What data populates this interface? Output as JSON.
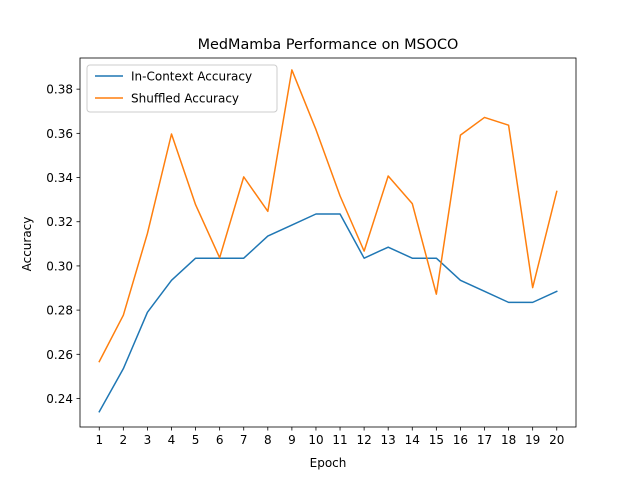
{
  "chart_data": {
    "type": "line",
    "title": "MedMamba Performance on MSOCO",
    "xlabel": "Epoch",
    "ylabel": "Accuracy",
    "x": [
      1,
      2,
      3,
      4,
      5,
      6,
      7,
      8,
      9,
      10,
      11,
      12,
      13,
      14,
      15,
      16,
      17,
      18,
      19,
      20
    ],
    "xlim": [
      0.2,
      20.8
    ],
    "ylim": [
      0.2271,
      0.3941
    ],
    "yticks": [
      "0.24",
      "0.26",
      "0.28",
      "0.30",
      "0.32",
      "0.34",
      "0.36",
      "0.38"
    ],
    "ytick_values": [
      0.24,
      0.26,
      0.28,
      0.3,
      0.32,
      0.34,
      0.36,
      0.38
    ],
    "legend_position": "top-left",
    "grid": false,
    "series": [
      {
        "name": "In-Context Accuracy",
        "color": "#1f77b4",
        "values": [
          0.234,
          0.2535,
          0.279,
          0.2935,
          0.3035,
          0.3035,
          0.3035,
          0.3135,
          0.3185,
          0.3235,
          0.3235,
          0.3035,
          0.3085,
          0.3035,
          0.3035,
          0.2935,
          0.2885,
          0.2835,
          0.2835,
          0.2885
        ]
      },
      {
        "name": "Shuffled Accuracy",
        "color": "#ff7f0e",
        "values": [
          0.2567,
          0.2777,
          0.3147,
          0.3597,
          0.3277,
          0.3037,
          0.3403,
          0.3247,
          0.3887,
          0.3617,
          0.3317,
          0.3067,
          0.3407,
          0.3282,
          0.2872,
          0.3592,
          0.3672,
          0.3637,
          0.2902,
          0.3337
        ]
      }
    ]
  }
}
